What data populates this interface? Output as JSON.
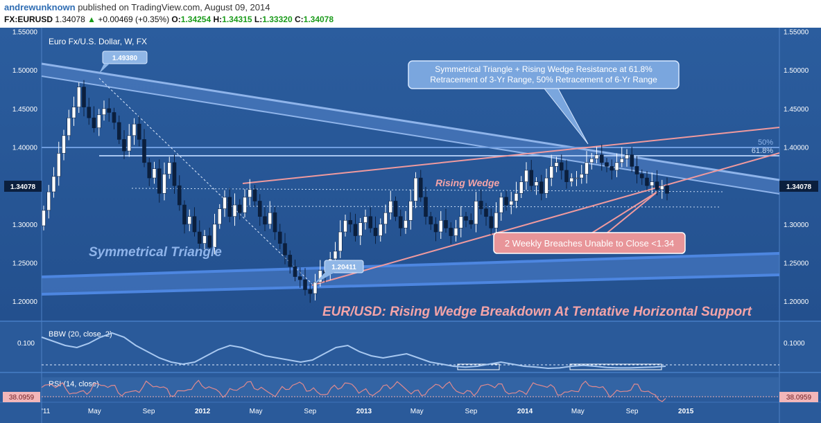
{
  "header": {
    "author": "andrewunknown",
    "published": "published on TradingView.com, August 09, 2014",
    "symbol": "FX:EURUSD",
    "last": "1.34078",
    "change_arrow": "▲",
    "change": "+0.00469 (+0.35%)",
    "o_label": "O:",
    "o": "1.34254",
    "h_label": "H:",
    "h": "1.34315",
    "l_label": "L:",
    "l": "1.33320",
    "c_label": "C:",
    "c": "1.34078"
  },
  "colors": {
    "background": "#2a5a9a",
    "panel_edge": "#1e4a86",
    "wedge": "#f09a9e",
    "channel": "#8fb4ea",
    "channel_fill": "#5f8fd4",
    "candle_up": "#ffffff",
    "candle_down": "#0b1f3d",
    "bbw_line": "#a8c8f0",
    "rsi_line": "#e08a8f"
  },
  "chart_data": {
    "type": "candlestick",
    "title": "Euro Fx/U.S. Dollar, W, FX",
    "headline": "EUR/USD: Rising Wedge Breakdown At Tentative Horizontal Support",
    "ylim": [
      1.175,
      1.555
    ],
    "y_ticks": [
      "1.55000",
      "1.50000",
      "1.45000",
      "1.40000",
      "1.35000",
      "1.30000",
      "1.25000",
      "1.20000"
    ],
    "x_ticks": [
      "'11",
      "May",
      "Sep",
      "2012",
      "May",
      "Sep",
      "2013",
      "May",
      "Sep",
      "2014",
      "May",
      "Sep",
      "2015"
    ],
    "x_range": [
      "2011-01-01",
      "2015-08-01"
    ],
    "last_price_label": "1.34078",
    "series_close": [
      1.318,
      1.342,
      1.362,
      1.392,
      1.415,
      1.438,
      1.452,
      1.478,
      1.452,
      1.438,
      1.425,
      1.442,
      1.45,
      1.445,
      1.432,
      1.41,
      1.395,
      1.415,
      1.43,
      1.41,
      1.38,
      1.36,
      1.372,
      1.34,
      1.365,
      1.38,
      1.35,
      1.325,
      1.3,
      1.31,
      1.29,
      1.275,
      1.285,
      1.27,
      1.3,
      1.32,
      1.335,
      1.31,
      1.325,
      1.315,
      1.335,
      1.345,
      1.33,
      1.31,
      1.3,
      1.315,
      1.29,
      1.275,
      1.26,
      1.245,
      1.232,
      1.228,
      1.215,
      1.21,
      1.225,
      1.24,
      1.235,
      1.255,
      1.265,
      1.29,
      1.305,
      1.3,
      1.285,
      1.302,
      1.31,
      1.295,
      1.285,
      1.3,
      1.315,
      1.33,
      1.31,
      1.295,
      1.305,
      1.33,
      1.36,
      1.335,
      1.31,
      1.3,
      1.29,
      1.305,
      1.295,
      1.285,
      1.295,
      1.31,
      1.305,
      1.3,
      1.33,
      1.32,
      1.31,
      1.295,
      1.315,
      1.335,
      1.325,
      1.33,
      1.34,
      1.355,
      1.37,
      1.35,
      1.355,
      1.34,
      1.36,
      1.375,
      1.38,
      1.37,
      1.355,
      1.36,
      1.36,
      1.365,
      1.38,
      1.385,
      1.39,
      1.38,
      1.375,
      1.37,
      1.38,
      1.385,
      1.39,
      1.375,
      1.365,
      1.36,
      1.35,
      1.355,
      1.345,
      1.35,
      1.34
    ],
    "annotations": [
      {
        "text": "1.49380"
      },
      {
        "text": "1.20411"
      },
      {
        "text": "Symmetrical Triangle + Rising Wedge Resistance at 61.8%",
        "line2": "Retracement of 3-Yr Range, 50% Retracement of 6-Yr Range"
      },
      {
        "text": "Rising Wedge"
      },
      {
        "text": "Symmetrical Triangle"
      },
      {
        "text": "2 Weekly Breaches Unable to Close <1.34"
      },
      {
        "text": "50%"
      },
      {
        "text": "61.8%"
      }
    ],
    "indicators": [
      {
        "name": "BBW (20, close, 2)",
        "ytick": "0.100",
        "ylabel_right": "0.1000"
      },
      {
        "name": "RSI (14, close)",
        "value": "38.0959"
      }
    ],
    "grid": false
  }
}
